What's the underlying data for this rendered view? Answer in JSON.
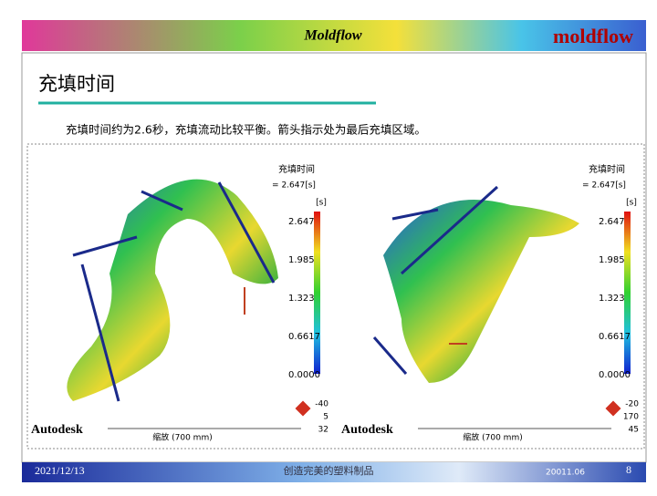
{
  "header": {
    "brand": "Moldflow",
    "logo": "moldflow"
  },
  "slide": {
    "title": "充填时间",
    "description": "充填时间约为2.6秒，充填流动比较平衡。箭头指示处为最后充填区域。"
  },
  "panels": [
    {
      "title": "充填时间",
      "value": "= 2.647[s]",
      "unit": "[s]",
      "scale": [
        "2.647",
        "1.985",
        "1.323",
        "0.6617",
        "0.0000"
      ],
      "triad": [
        "-40",
        "5",
        "32"
      ],
      "vendor": "Autodesk",
      "zoom": "缩放 (700 mm)"
    },
    {
      "title": "充填时间",
      "value": "= 2.647[s]",
      "unit": "[s]",
      "scale": [
        "2.647",
        "1.985",
        "1.323",
        "0.6617",
        "0.0000"
      ],
      "triad": [
        "-20",
        "170",
        "45"
      ],
      "vendor": "Autodesk",
      "zoom": "缩放 (700 mm)"
    }
  ],
  "footer": {
    "date": "2021/12/13",
    "slogan": "创造完美的塑料制品",
    "code": "20011.06",
    "page": "8"
  }
}
